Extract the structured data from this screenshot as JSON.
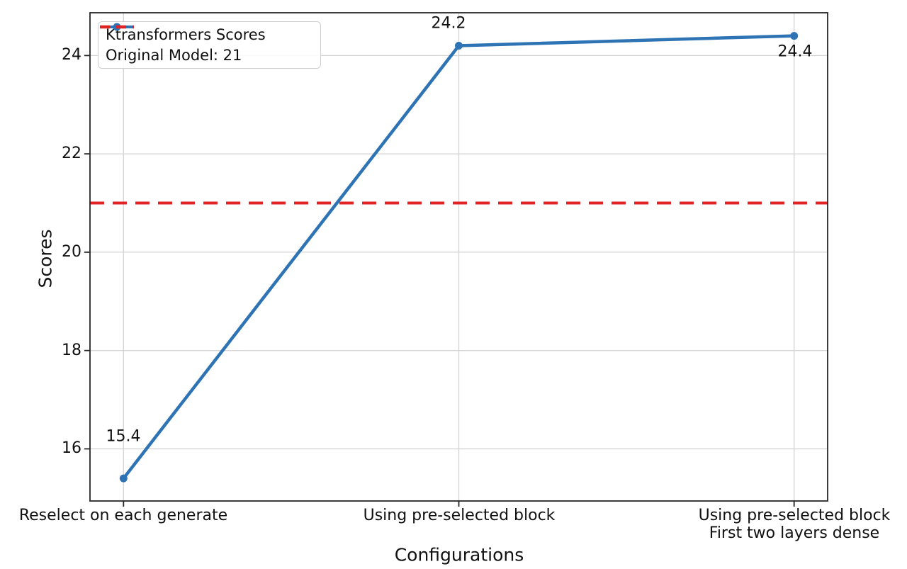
{
  "chart_data": {
    "type": "line",
    "xlabel": "Configurations",
    "ylabel": "Scores",
    "categories": [
      "Reselect on each generate",
      "Using pre-selected block",
      "Using pre-selected block\nFirst two layers dense"
    ],
    "series": [
      {
        "name": "Ktransformers Scores",
        "values": [
          15.4,
          24.2,
          24.4
        ],
        "color": "#2e74b5",
        "style": "solid",
        "marker": "circle"
      }
    ],
    "reference_line": {
      "name": "Original Model: 21",
      "value": 21,
      "color": "#e02424",
      "style": "dashed"
    },
    "data_labels": [
      "15.4",
      "24.2",
      "24.4"
    ],
    "yticks": [
      16,
      18,
      20,
      22,
      24
    ],
    "ylim": [
      14.94,
      24.87
    ],
    "grid": true,
    "legend_position": "upper-left",
    "colors": {
      "grid": "#d4d4d4",
      "spine": "#262626",
      "text": "#111111",
      "background": "#ffffff"
    }
  }
}
